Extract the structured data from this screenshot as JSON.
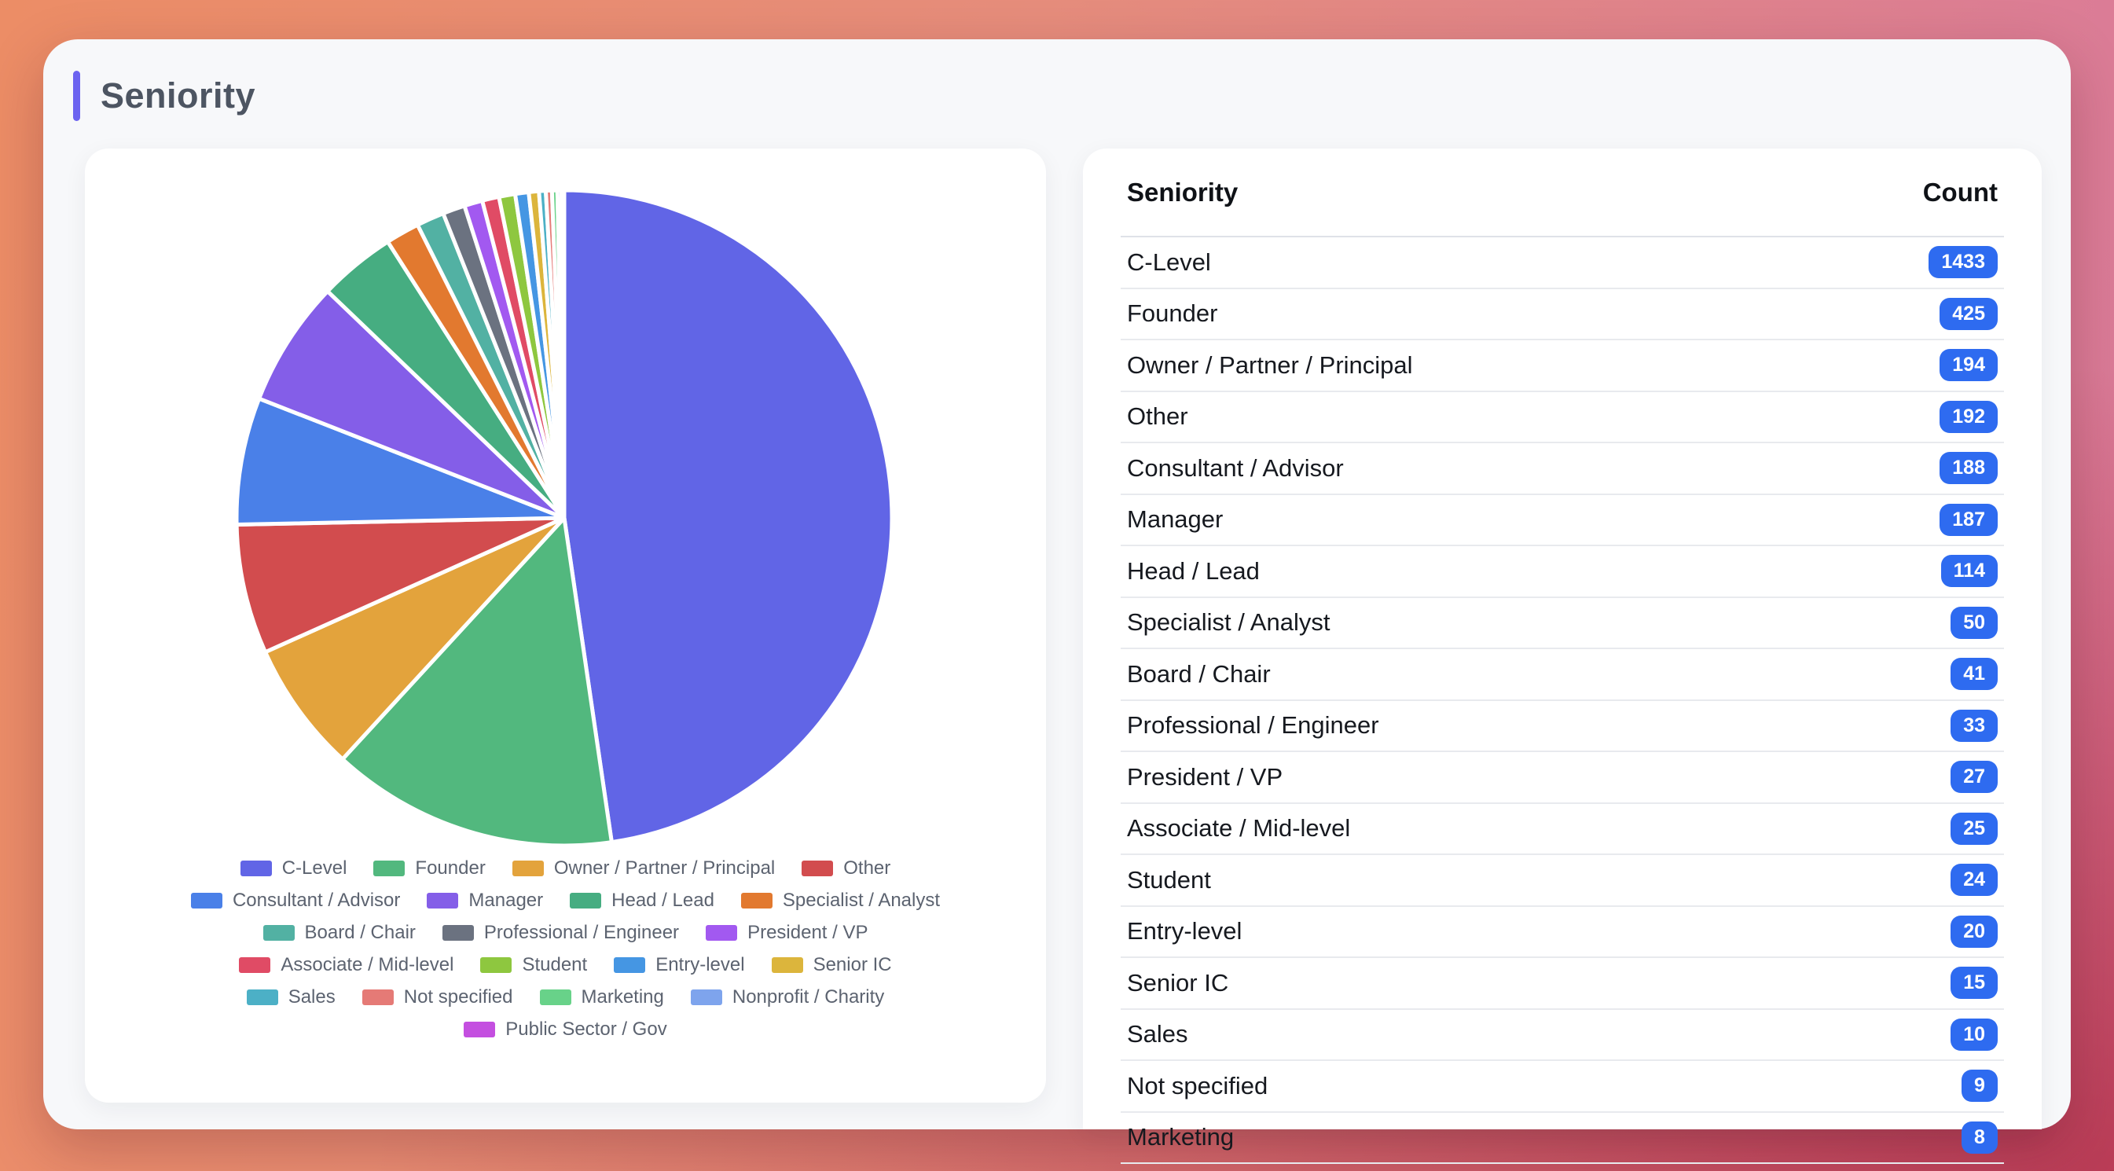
{
  "title": "Seniority",
  "accent_color": "#6c63f0",
  "badge_color": "#2e6bf0",
  "chart_data": {
    "type": "pie",
    "title": "Seniority",
    "legend_position": "bottom",
    "categories": [
      "C-Level",
      "Founder",
      "Owner / Partner / Principal",
      "Other",
      "Consultant / Advisor",
      "Manager",
      "Head / Lead",
      "Specialist / Analyst",
      "Board / Chair",
      "Professional / Engineer",
      "President / VP",
      "Associate / Mid-level",
      "Student",
      "Entry-level",
      "Senior IC",
      "Sales",
      "Not specified",
      "Marketing",
      "Nonprofit / Charity",
      "Public Sector / Gov"
    ],
    "values": [
      1433,
      425,
      194,
      192,
      188,
      187,
      114,
      50,
      41,
      33,
      27,
      25,
      24,
      20,
      15,
      10,
      9,
      8,
      6,
      4
    ],
    "colors": [
      "#6165e6",
      "#52b87e",
      "#e3a33c",
      "#d24c4e",
      "#4a80e8",
      "#845ee8",
      "#46ad81",
      "#e2792f",
      "#52b1a3",
      "#6b7280",
      "#a259f0",
      "#e04b65",
      "#8ec73f",
      "#4596e3",
      "#dcb53c",
      "#4cb0c6",
      "#e57a76",
      "#68d289",
      "#7ea4ed",
      "#c44fe0"
    ]
  },
  "table": {
    "headers": [
      "Seniority",
      "Count"
    ],
    "rows": [
      {
        "label": "C-Level",
        "count": "1433"
      },
      {
        "label": "Founder",
        "count": "425"
      },
      {
        "label": "Owner / Partner / Principal",
        "count": "194"
      },
      {
        "label": "Other",
        "count": "192"
      },
      {
        "label": "Consultant / Advisor",
        "count": "188"
      },
      {
        "label": "Manager",
        "count": "187"
      },
      {
        "label": "Head / Lead",
        "count": "114"
      },
      {
        "label": "Specialist / Analyst",
        "count": "50"
      },
      {
        "label": "Board / Chair",
        "count": "41"
      },
      {
        "label": "Professional / Engineer",
        "count": "33"
      },
      {
        "label": "President / VP",
        "count": "27"
      },
      {
        "label": "Associate / Mid-level",
        "count": "25"
      },
      {
        "label": "Student",
        "count": "24"
      },
      {
        "label": "Entry-level",
        "count": "20"
      },
      {
        "label": "Senior IC",
        "count": "15"
      },
      {
        "label": "Sales",
        "count": "10"
      },
      {
        "label": "Not specified",
        "count": "9"
      },
      {
        "label": "Marketing",
        "count": "8"
      }
    ]
  }
}
